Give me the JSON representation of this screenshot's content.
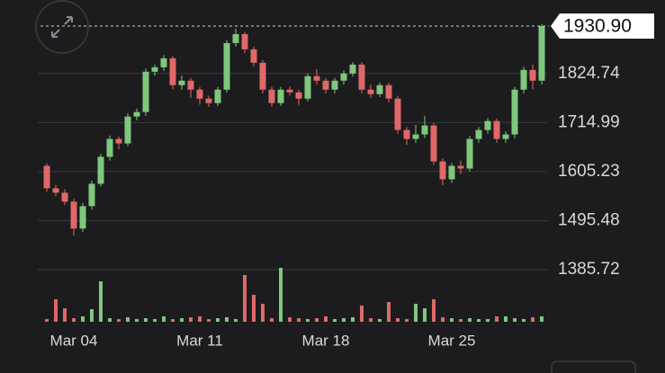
{
  "chart_data": {
    "type": "candlestick",
    "current_price": 1930.9,
    "current_price_label": "1930.90",
    "up_color": "#7ec87c",
    "down_color": "#e06868",
    "grid": true,
    "xlim": [
      -0.5,
      55.5
    ],
    "xticks": [
      {
        "value": 3,
        "label": "Mar 04"
      },
      {
        "value": 17,
        "label": "Mar 11"
      },
      {
        "value": 31,
        "label": "Mar 18"
      },
      {
        "value": 45,
        "label": "Mar 25"
      }
    ],
    "ylim": [
      1385.72,
      1970
    ],
    "yticks": [
      1385.72,
      1495.48,
      1605.23,
      1714.99,
      1824.74
    ],
    "volume_lim": [
      0,
      60
    ],
    "series": {
      "open": [
        1618.1,
        1567.9,
        1557.9,
        1537.9,
        1477.7,
        1527.8,
        1577.9,
        1638.2,
        1678.3,
        1668.2,
        1728.4,
        1738.5,
        1828.7,
        1838.7,
        1858.8,
        1798.6,
        1808.7,
        1788.6,
        1768.5,
        1758.5,
        1788.6,
        1892.9,
        1913.0,
        1878.9,
        1848.8,
        1788.6,
        1758.5,
        1788.6,
        1782.6,
        1768.5,
        1818.7,
        1808.7,
        1788.6,
        1808.7,
        1824.7,
        1844.8,
        1788.6,
        1778.6,
        1798.6,
        1768.5,
        1698.3,
        1678.3,
        1688.3,
        1708.4,
        1628.1,
        1588.0,
        1618.1,
        1612.0,
        1678.3,
        1698.3,
        1718.4,
        1678.3,
        1688.3,
        1788.6,
        1832.7,
        1808.7
      ],
      "high": [
        1624.0,
        1575.0,
        1566.0,
        1545.0,
        1535.0,
        1585.0,
        1645.0,
        1686.0,
        1684.0,
        1736.0,
        1746.0,
        1836.0,
        1845.0,
        1866.0,
        1864.0,
        1820.0,
        1815.0,
        1795.0,
        1775.0,
        1795.0,
        1900.0,
        1925.0,
        1918.0,
        1885.0,
        1855.0,
        1795.0,
        1795.0,
        1796.0,
        1788.0,
        1825.0,
        1835.0,
        1815.0,
        1815.0,
        1832.0,
        1850.0,
        1850.0,
        1800.0,
        1805.0,
        1804.0,
        1775.0,
        1705.0,
        1710.0,
        1730.0,
        1714.0,
        1635.0,
        1625.0,
        1630.0,
        1685.0,
        1705.0,
        1725.0,
        1724.0,
        1695.0,
        1795.0,
        1840.0,
        1845.0,
        1935.0
      ],
      "low": [
        1560.0,
        1550.0,
        1530.0,
        1462.0,
        1470.0,
        1520.0,
        1572.0,
        1630.0,
        1655.0,
        1662.0,
        1720.0,
        1730.0,
        1820.0,
        1830.0,
        1790.0,
        1788.0,
        1770.0,
        1755.0,
        1750.0,
        1752.0,
        1782.0,
        1885.0,
        1870.0,
        1840.0,
        1780.0,
        1750.0,
        1752.0,
        1775.0,
        1755.0,
        1762.0,
        1800.0,
        1780.0,
        1780.0,
        1800.0,
        1818.0,
        1780.0,
        1770.0,
        1772.0,
        1760.0,
        1690.0,
        1665.0,
        1670.0,
        1680.0,
        1620.0,
        1575.0,
        1580.0,
        1600.0,
        1605.0,
        1670.0,
        1690.0,
        1670.0,
        1670.0,
        1680.0,
        1780.0,
        1790.0,
        1800.0
      ],
      "close": [
        1567.9,
        1557.9,
        1537.9,
        1477.7,
        1527.8,
        1577.9,
        1638.2,
        1678.3,
        1668.2,
        1728.4,
        1738.5,
        1828.7,
        1838.7,
        1858.8,
        1798.6,
        1808.7,
        1788.6,
        1768.5,
        1758.5,
        1788.6,
        1892.9,
        1913.0,
        1878.9,
        1848.8,
        1788.6,
        1758.5,
        1788.6,
        1782.6,
        1768.5,
        1818.7,
        1808.7,
        1788.6,
        1808.7,
        1824.7,
        1844.8,
        1788.6,
        1778.6,
        1798.6,
        1768.5,
        1698.3,
        1678.3,
        1688.3,
        1708.4,
        1628.1,
        1588.0,
        1618.1,
        1612.0,
        1678.3,
        1698.3,
        1718.4,
        1678.3,
        1688.3,
        1788.6,
        1832.7,
        1808.7,
        1930.9
      ],
      "volume": [
        3,
        25,
        15,
        4,
        6,
        14,
        45,
        4,
        3,
        5,
        3,
        4,
        3,
        6,
        3,
        4,
        5,
        6,
        3,
        4,
        5,
        3,
        52,
        30,
        20,
        4,
        60,
        5,
        4,
        3,
        4,
        6,
        3,
        4,
        5,
        18,
        4,
        3,
        22,
        4,
        3,
        20,
        15,
        25,
        5,
        4,
        3,
        4,
        3,
        3,
        6,
        6,
        4,
        3,
        5,
        6
      ]
    }
  }
}
